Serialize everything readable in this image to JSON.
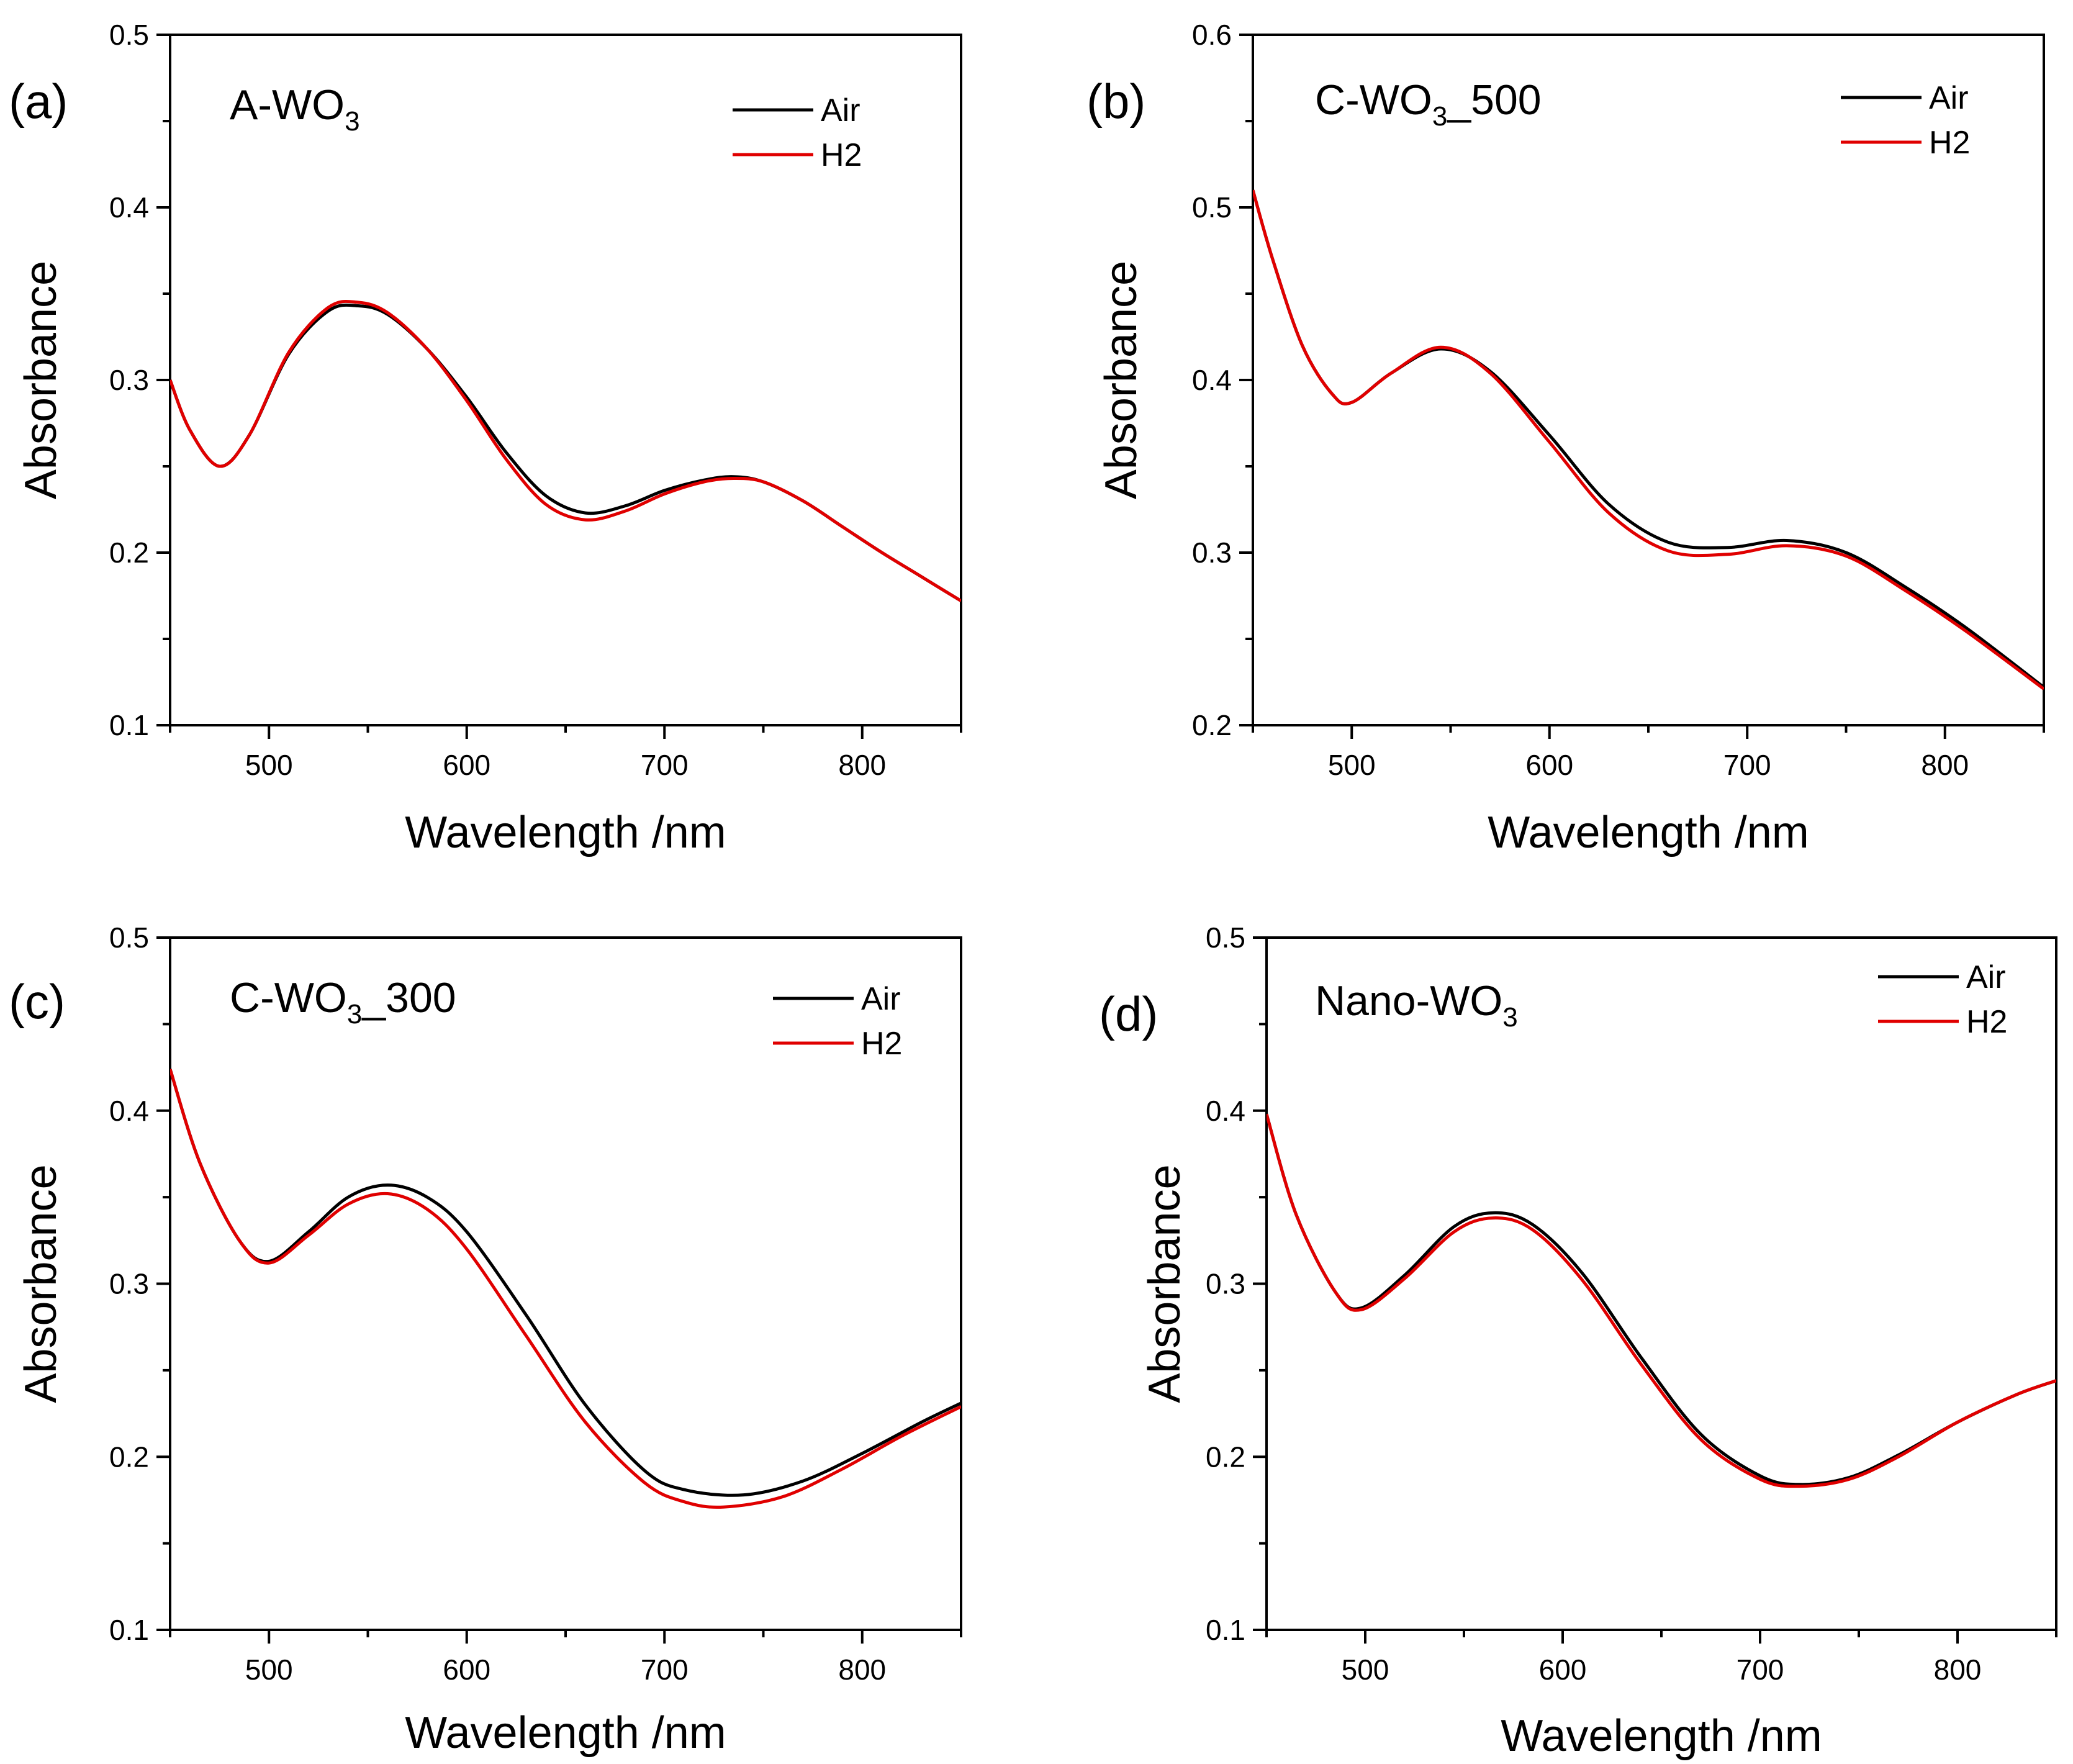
{
  "chart_data": [
    {
      "panel_label": "(a)",
      "type": "line",
      "title": {
        "main": "A-WO",
        "sub": "3",
        "suffix": ""
      },
      "xlabel": "Wavelength /nm",
      "ylabel": "Absorbance",
      "xlim": [
        450,
        850
      ],
      "ylim": [
        0.1,
        0.5
      ],
      "xticks": [
        "500",
        "600",
        "700",
        "800"
      ],
      "yticks": [
        "0.1",
        "0.2",
        "0.3",
        "0.4",
        "0.5"
      ],
      "legend": "top-right",
      "series": [
        {
          "name": "Air",
          "color": "#000000",
          "x": [
            450,
            460,
            475,
            490,
            510,
            530,
            545,
            560,
            580,
            600,
            620,
            640,
            660,
            680,
            700,
            720,
            735,
            750,
            770,
            790,
            810,
            830,
            850
          ],
          "y": [
            0.3,
            0.271,
            0.25,
            0.268,
            0.315,
            0.34,
            0.343,
            0.338,
            0.318,
            0.29,
            0.258,
            0.233,
            0.223,
            0.227,
            0.236,
            0.242,
            0.244,
            0.241,
            0.23,
            0.215,
            0.2,
            0.186,
            0.172
          ]
        },
        {
          "name": "H2",
          "color": "#e00000",
          "x": [
            450,
            460,
            475,
            490,
            510,
            530,
            545,
            560,
            580,
            600,
            620,
            640,
            660,
            680,
            700,
            720,
            735,
            750,
            770,
            790,
            810,
            830,
            850
          ],
          "y": [
            0.3,
            0.271,
            0.25,
            0.268,
            0.316,
            0.342,
            0.345,
            0.339,
            0.318,
            0.288,
            0.254,
            0.228,
            0.219,
            0.224,
            0.234,
            0.241,
            0.243,
            0.241,
            0.23,
            0.215,
            0.2,
            0.186,
            0.172
          ]
        }
      ]
    },
    {
      "panel_label": "(b)",
      "type": "line",
      "title": {
        "main": "C-WO",
        "sub": "3",
        "suffix": "_500"
      },
      "xlabel": "Wavelength /nm",
      "ylabel": "Absorbance",
      "xlim": [
        450,
        850
      ],
      "ylim": [
        0.2,
        0.6
      ],
      "xticks": [
        "500",
        "600",
        "700",
        "800"
      ],
      "yticks": [
        "0.2",
        "0.3",
        "0.4",
        "0.5",
        "0.6"
      ],
      "legend": "top-right",
      "series": [
        {
          "name": "Air",
          "color": "#000000",
          "x": [
            450,
            460,
            475,
            490,
            500,
            520,
            545,
            570,
            600,
            630,
            660,
            690,
            720,
            750,
            780,
            810,
            850
          ],
          "y": [
            0.51,
            0.47,
            0.42,
            0.392,
            0.387,
            0.404,
            0.418,
            0.405,
            0.368,
            0.328,
            0.306,
            0.303,
            0.307,
            0.3,
            0.28,
            0.257,
            0.222
          ]
        },
        {
          "name": "H2",
          "color": "#e00000",
          "x": [
            450,
            460,
            475,
            490,
            500,
            520,
            545,
            570,
            600,
            630,
            660,
            690,
            720,
            750,
            780,
            810,
            850
          ],
          "y": [
            0.51,
            0.47,
            0.42,
            0.392,
            0.387,
            0.404,
            0.419,
            0.404,
            0.364,
            0.323,
            0.301,
            0.299,
            0.304,
            0.298,
            0.278,
            0.255,
            0.221
          ]
        }
      ]
    },
    {
      "panel_label": "(c)",
      "type": "line",
      "title": {
        "main": "C-WO",
        "sub": "3",
        "suffix": "_300"
      },
      "xlabel": "Wavelength /nm",
      "ylabel": "Absorbance",
      "xlim": [
        450,
        850
      ],
      "ylim": [
        0.1,
        0.5
      ],
      "xticks": [
        "500",
        "600",
        "700",
        "800"
      ],
      "yticks": [
        "0.1",
        "0.2",
        "0.3",
        "0.4",
        "0.5"
      ],
      "legend": "top-right",
      "series": [
        {
          "name": "Air",
          "color": "#000000",
          "x": [
            450,
            465,
            485,
            500,
            520,
            540,
            560,
            580,
            600,
            630,
            660,
            690,
            710,
            740,
            770,
            800,
            830,
            850
          ],
          "y": [
            0.424,
            0.37,
            0.325,
            0.313,
            0.33,
            0.35,
            0.357,
            0.35,
            0.33,
            0.282,
            0.23,
            0.192,
            0.181,
            0.178,
            0.186,
            0.202,
            0.22,
            0.231
          ]
        },
        {
          "name": "H2",
          "color": "#e00000",
          "x": [
            450,
            465,
            485,
            500,
            520,
            540,
            560,
            580,
            600,
            630,
            660,
            690,
            710,
            730,
            760,
            790,
            820,
            850
          ],
          "y": [
            0.424,
            0.37,
            0.325,
            0.312,
            0.328,
            0.346,
            0.352,
            0.343,
            0.32,
            0.27,
            0.22,
            0.185,
            0.174,
            0.171,
            0.177,
            0.193,
            0.212,
            0.229
          ]
        }
      ]
    },
    {
      "panel_label": "(d)",
      "type": "line",
      "title": {
        "main": "Nano-WO",
        "sub": "3",
        "suffix": ""
      },
      "xlabel": "Wavelength /nm",
      "ylabel": "Absorbance",
      "xlim": [
        450,
        850
      ],
      "ylim": [
        0.1,
        0.5
      ],
      "xticks": [
        "500",
        "600",
        "700",
        "800"
      ],
      "yticks": [
        "0.1",
        "0.2",
        "0.3",
        "0.4",
        "0.5"
      ],
      "legend": "top-right",
      "series": [
        {
          "name": "Air",
          "color": "#000000",
          "x": [
            450,
            465,
            485,
            498,
            520,
            545,
            565,
            585,
            610,
            640,
            670,
            700,
            720,
            745,
            770,
            800,
            830,
            850
          ],
          "y": [
            0.398,
            0.34,
            0.295,
            0.286,
            0.305,
            0.333,
            0.341,
            0.334,
            0.306,
            0.257,
            0.213,
            0.189,
            0.184,
            0.188,
            0.201,
            0.22,
            0.236,
            0.244
          ]
        },
        {
          "name": "H2",
          "color": "#e00000",
          "x": [
            450,
            465,
            485,
            498,
            520,
            545,
            565,
            585,
            610,
            640,
            670,
            700,
            720,
            745,
            770,
            800,
            830,
            850
          ],
          "y": [
            0.398,
            0.34,
            0.295,
            0.285,
            0.303,
            0.33,
            0.338,
            0.331,
            0.302,
            0.253,
            0.21,
            0.187,
            0.183,
            0.187,
            0.2,
            0.22,
            0.236,
            0.244
          ]
        }
      ]
    }
  ]
}
